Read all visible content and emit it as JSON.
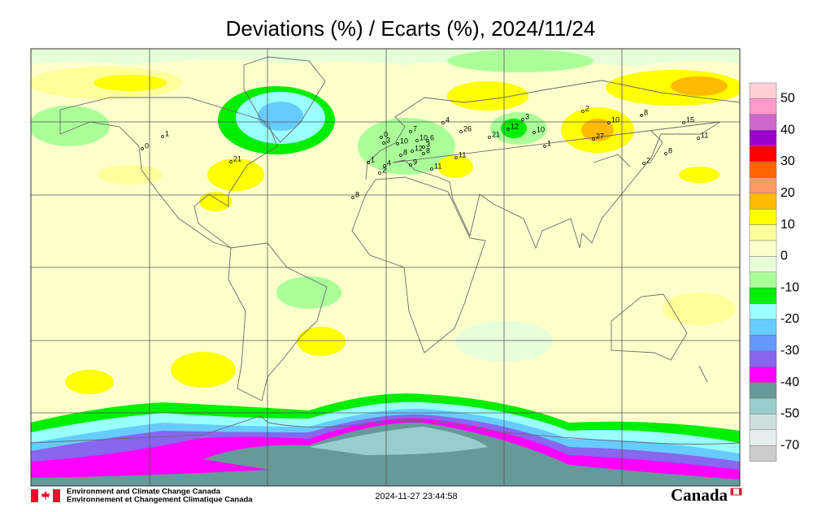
{
  "title": "Deviations (%) / Ecarts (%), 2024/11/24",
  "legend": {
    "labels": [
      50,
      40,
      30,
      20,
      10,
      0,
      -10,
      -20,
      -30,
      -40,
      -50,
      -70
    ],
    "colors": [
      "#ffd0d4",
      "#ff99cc",
      "#cc66cc",
      "#9900cc",
      "#ff0000",
      "#ff6600",
      "#ff9966",
      "#ffbb00",
      "#ffff00",
      "#ffff99",
      "#ffffcc",
      "#e6ffd9",
      "#aaff99",
      "#00ee00",
      "#99ffff",
      "#66ccff",
      "#6699ff",
      "#8866ee",
      "#ff00ff",
      "#669999",
      "#99cccc",
      "#cce0e0",
      "#e6eeee",
      "#cccccc"
    ]
  },
  "stations": [
    1,
    0,
    21,
    8,
    1,
    0,
    3,
    10,
    7,
    10,
    6,
    8,
    12,
    8,
    3,
    4,
    2,
    9,
    11,
    11,
    26,
    21,
    12,
    3,
    10,
    1,
    2,
    10,
    27,
    8,
    15,
    11,
    2,
    8,
    4
  ],
  "footer": {
    "agency_en": "Environment and Climate Change Canada",
    "agency_fr": "Environnement et Changement Climatique Canada",
    "timestamp": "2024-11-27 23:44:58",
    "wordmark": "Canada"
  }
}
